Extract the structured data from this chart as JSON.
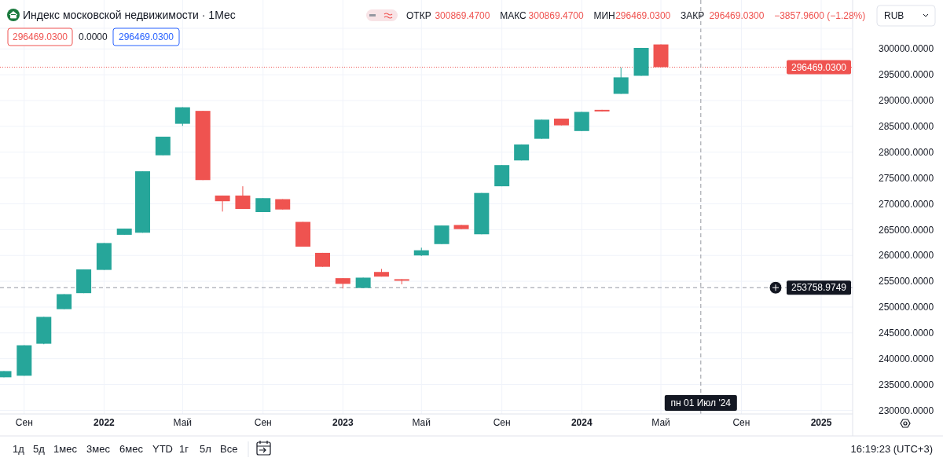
{
  "chart_data": {
    "type": "candlestick",
    "title": "Индекс московской недвижимости · 1Мес",
    "x": [
      "2021-08",
      "2021-09",
      "2021-10",
      "2021-11",
      "2021-12",
      "2022-01",
      "2022-02",
      "2022-03",
      "2022-04",
      "2022-05",
      "2022-06",
      "2022-07",
      "2022-08",
      "2022-09",
      "2022-10",
      "2022-11",
      "2022-12",
      "2023-01",
      "2023-02",
      "2023-03",
      "2023-04",
      "2023-05",
      "2023-06",
      "2023-07",
      "2023-08",
      "2023-09",
      "2023-10",
      "2023-11",
      "2023-12",
      "2024-01",
      "2024-02",
      "2024-03",
      "2024-04",
      "2024-05"
    ],
    "ohlc": [
      [
        236400,
        237600,
        236400,
        237600
      ],
      [
        236700,
        242600,
        236700,
        242600
      ],
      [
        242900,
        248100,
        242800,
        248100
      ],
      [
        249600,
        252500,
        249600,
        252500
      ],
      [
        252700,
        257300,
        252700,
        257300
      ],
      [
        257200,
        262400,
        257200,
        262400
      ],
      [
        264000,
        265200,
        264000,
        265200
      ],
      [
        264400,
        276300,
        264400,
        276300
      ],
      [
        279400,
        283000,
        279400,
        283000
      ],
      [
        285500,
        288700,
        285100,
        288700
      ],
      [
        288000,
        288000,
        274600,
        274600
      ],
      [
        271600,
        271600,
        268500,
        270500
      ],
      [
        271600,
        273400,
        269000,
        269000
      ],
      [
        268400,
        271100,
        268400,
        271100
      ],
      [
        270900,
        270900,
        268900,
        268900
      ],
      [
        266500,
        266500,
        261700,
        261700
      ],
      [
        260500,
        260500,
        257800,
        257800
      ],
      [
        255600,
        255600,
        253600,
        254500
      ],
      [
        253700,
        255700,
        253700,
        255700
      ],
      [
        256800,
        257400,
        255900,
        255900
      ],
      [
        255400,
        255400,
        254400,
        255100
      ],
      [
        260000,
        261500,
        259900,
        261000
      ],
      [
        262200,
        265800,
        262200,
        265800
      ],
      [
        265900,
        265900,
        265100,
        265100
      ],
      [
        264100,
        272100,
        264100,
        272100
      ],
      [
        273400,
        277500,
        273400,
        277500
      ],
      [
        278400,
        281500,
        278400,
        281500
      ],
      [
        282600,
        286300,
        282600,
        286300
      ],
      [
        286500,
        286500,
        285200,
        285200
      ],
      [
        284100,
        287800,
        284100,
        287800
      ],
      [
        288200,
        288200,
        287900,
        287900
      ],
      [
        291300,
        296400,
        291300,
        294500
      ],
      [
        294800,
        300200,
        294800,
        300200
      ],
      [
        300869.47,
        300869.47,
        296469.03,
        296469.03
      ]
    ],
    "colors": [
      "#26a69a",
      "#26a69a",
      "#26a69a",
      "#26a69a",
      "#26a69a",
      "#26a69a",
      "#26a69a",
      "#26a69a",
      "#26a69a",
      "#26a69a",
      "#ef5350",
      "#ef5350",
      "#ef5350",
      "#26a69a",
      "#ef5350",
      "#ef5350",
      "#ef5350",
      "#ef5350",
      "#26a69a",
      "#ef5350",
      "#ef5350",
      "#26a69a",
      "#26a69a",
      "#ef5350",
      "#26a69a",
      "#26a69a",
      "#26a69a",
      "#26a69a",
      "#ef5350",
      "#26a69a",
      "#ef5350",
      "#26a69a",
      "#26a69a",
      "#ef5350"
    ],
    "xlim": [
      "2021-07-26",
      "2025-02-18"
    ],
    "xticks": [
      {
        "value": "2021-09",
        "label": "Сен"
      },
      {
        "value": "2022",
        "label": "2022"
      },
      {
        "value": "2022-05",
        "label": "Май"
      },
      {
        "value": "2022-09",
        "label": "Сен"
      },
      {
        "value": "2023",
        "label": "2023"
      },
      {
        "value": "2023-05",
        "label": "Май"
      },
      {
        "value": "2023-09",
        "label": "Сен"
      },
      {
        "value": "2024",
        "label": "2024"
      },
      {
        "value": "2024-05",
        "label": "Май"
      },
      {
        "value": "2024-09",
        "label": "Сен"
      },
      {
        "value": "2025",
        "label": "2025"
      }
    ],
    "ylim": [
      229300,
      304000
    ],
    "yticks": [
      {
        "value": 230000,
        "label": "230000.0000"
      },
      {
        "value": 235000,
        "label": "235000.0000"
      },
      {
        "value": 240000,
        "label": "240000.0000"
      },
      {
        "value": 245000,
        "label": "245000.0000"
      },
      {
        "value": 250000,
        "label": "250000.0000"
      },
      {
        "value": 255000,
        "label": "255000.0000"
      },
      {
        "value": 260000,
        "label": "260000.0000"
      },
      {
        "value": 265000,
        "label": "265000.0000"
      },
      {
        "value": 270000,
        "label": "270000.0000"
      },
      {
        "value": 275000,
        "label": "275000.0000"
      },
      {
        "value": 280000,
        "label": "280000.0000"
      },
      {
        "value": 285000,
        "label": "285000.0000"
      },
      {
        "value": 290000,
        "label": "290000.0000"
      },
      {
        "value": 295000,
        "label": "295000.0000"
      },
      {
        "value": 300000,
        "label": "300000.0000"
      }
    ],
    "grid": true,
    "ref_lines": [
      {
        "axis": "y",
        "value": 296469.03,
        "label": "296469.0300",
        "color": "#ef5350",
        "line_style": "dotted"
      },
      {
        "axis": "y",
        "value": 253758.9749,
        "label": "253758.9749",
        "color": "#9598a1",
        "line_style": "dashed"
      },
      {
        "axis": "x",
        "value": "2024-07-01",
        "label": "пн 01 Июл '24",
        "color": "#9598a1",
        "line_style": "dashed"
      }
    ],
    "annotations": [
      "ОТКР",
      "300869.4700",
      "МАКС",
      "300869.4700",
      "МИН",
      "296469.0300",
      "ЗАКР",
      "296469.0300",
      "−3857.9600 (−1.28%)",
      "296469.0300",
      "0.0000",
      "296469.0300",
      "RUB",
      "1д",
      "5д",
      "1мес",
      "3мес",
      "6мес",
      "YTD",
      "1г",
      "5л",
      "Все",
      "16:19:23 (UTC+3)"
    ]
  }
}
